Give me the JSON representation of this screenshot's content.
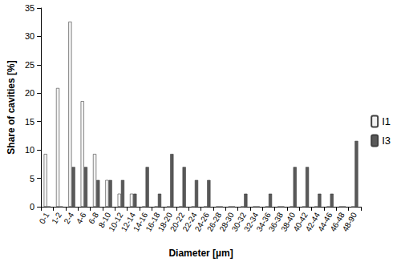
{
  "chart_data": {
    "type": "bar",
    "x_label": "Diameter [µm]",
    "y_label": "Share of cavities [%]",
    "categories": [
      "0-1",
      "1-2",
      "2-4",
      "4-6",
      "6-8",
      "8-10",
      "10-12",
      "12-14",
      "14-16",
      "16-18",
      "18-20",
      "20-22",
      "22-24",
      "24-26",
      "26-28",
      "28-30",
      "30-32",
      "32-34",
      "34-36",
      "36-38",
      "38-40",
      "40-42",
      "42-44",
      "44-46",
      "46-48",
      "48-90"
    ],
    "series": [
      {
        "name": "I1",
        "color": "#f2f2f2",
        "values": [
          9.3,
          20.9,
          32.6,
          18.6,
          9.3,
          4.7,
          2.3,
          2.3,
          0,
          0,
          0,
          0,
          0,
          0,
          0,
          0,
          0,
          0,
          0,
          0,
          0,
          0,
          0,
          0,
          0,
          0
        ]
      },
      {
        "name": "I3",
        "color": "#595959",
        "values": [
          0,
          0,
          7.0,
          7.0,
          4.7,
          4.7,
          4.7,
          2.3,
          7.0,
          2.3,
          9.3,
          7.0,
          4.7,
          4.7,
          0,
          0,
          2.3,
          0,
          2.3,
          0,
          7.0,
          7.0,
          2.3,
          2.3,
          0,
          11.6
        ]
      }
    ],
    "ylim": [
      0,
      35
    ],
    "yticks": [
      0,
      5,
      10,
      15,
      20,
      25,
      30,
      35
    ],
    "grid": false,
    "legend": "right"
  }
}
